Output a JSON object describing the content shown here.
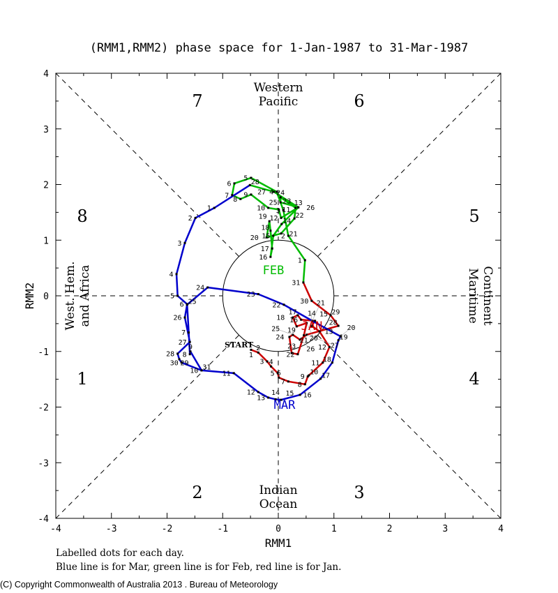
{
  "chart_data": {
    "type": "line",
    "title": "(RMM1,RMM2) phase space for  1-Jan-1987 to 31-Mar-1987",
    "xlabel": "RMM1",
    "ylabel": "RMM2",
    "xlim": [
      -4,
      4
    ],
    "ylim": [
      -4,
      4
    ],
    "xticks": [
      "-4",
      "-3",
      "-2",
      "-1",
      "0",
      "1",
      "2",
      "3",
      "4"
    ],
    "yticks": [
      "-4",
      "-3",
      "-2",
      "-1",
      "0",
      "1",
      "2",
      "3",
      "4"
    ],
    "phases": [
      "1",
      "2",
      "3",
      "4",
      "5",
      "6",
      "7",
      "8"
    ],
    "regions": {
      "top": [
        "Western",
        "Pacific"
      ],
      "bottom": [
        "Indian",
        "Ocean"
      ],
      "left": [
        "West. Hem.",
        "and Africa"
      ],
      "right": [
        "Maritime",
        "Continent"
      ]
    },
    "start_label": "START",
    "series": [
      {
        "name": "JAN",
        "color": "#cc0000",
        "x": [
          -0.49,
          -0.36,
          -0.2,
          -0.13,
          -0.01,
          0.01,
          0.18,
          0.48,
          0.53,
          0.55,
          0.8,
          0.92,
          0.74,
          0.6,
          0.66,
          0.41,
          0.35,
          0.26,
          0.33,
          0.51,
          0.46,
          0.35,
          0.24,
          0.2,
          0.26,
          0.39,
          0.51,
          1.08,
          0.94,
          0.6,
          0.45
        ],
        "y": [
          -0.97,
          -1.02,
          -1.18,
          -1.27,
          -1.39,
          -1.47,
          -1.54,
          -1.59,
          -1.45,
          -1.43,
          -1.2,
          -0.92,
          -0.64,
          -0.54,
          -0.45,
          -0.43,
          -0.35,
          -0.39,
          -0.55,
          -0.49,
          -0.71,
          -1.05,
          -1.03,
          -0.74,
          -0.7,
          -0.79,
          -0.7,
          -0.54,
          -0.35,
          -0.09,
          0.24
        ]
      },
      {
        "name": "FEB",
        "color": "#00bb00",
        "x": [
          0.48,
          0.18,
          0.09,
          -0.03,
          -0.49,
          -0.79,
          -0.83,
          -0.68,
          -0.49,
          -0.18,
          0.01,
          0.05,
          0.36,
          0.06,
          -0.09,
          -0.14,
          -0.11,
          -0.14,
          -0.16,
          -0.21,
          0.05,
          0.29,
          0.31,
          0.04,
          0.04,
          0.36,
          -0.08,
          -0.51
        ],
        "y": [
          0.64,
          1.08,
          1.54,
          1.87,
          2.12,
          2.02,
          1.81,
          1.74,
          1.82,
          1.58,
          1.55,
          1.4,
          1.59,
          1.29,
          1.08,
          0.7,
          0.85,
          1.17,
          1.34,
          1.05,
          1.12,
          1.39,
          1.58,
          1.77,
          1.68,
          1.59,
          1.87,
          1.99
        ]
      },
      {
        "name": "MAR",
        "color": "#0000cc",
        "x": [
          -1.15,
          -1.49,
          -1.68,
          -1.83,
          -1.81,
          -1.64,
          -1.61,
          -1.59,
          -1.58,
          -1.38,
          -0.8,
          -0.36,
          -0.18,
          -0.05,
          0.05,
          0.39,
          0.76,
          0.97,
          1.08,
          1.12,
          0.61,
          0.1,
          -0.36,
          -1.27,
          -1.64,
          -1.68,
          -1.59,
          -1.81,
          -1.78,
          -1.74,
          -1.38
        ],
        "y": [
          1.58,
          1.4,
          0.95,
          0.39,
          0.0,
          -0.15,
          -0.66,
          -1.05,
          -1.0,
          -1.34,
          -1.39,
          -1.73,
          -1.83,
          -1.86,
          -1.87,
          -1.78,
          -1.49,
          -1.2,
          -0.8,
          -0.73,
          -0.45,
          -0.16,
          0.03,
          0.15,
          -0.16,
          -0.39,
          -0.83,
          -1.04,
          -1.14,
          -1.2,
          -1.34
        ]
      }
    ],
    "month_labels": {
      "JAN": "JAN",
      "FEB": "FEB",
      "MAR": "MAR"
    },
    "notes": [
      "Labelled dots for each day.",
      "Blue line is for Mar, green line is for Feb, red line is for Jan."
    ]
  },
  "copyright": "(C) Copyright Commonwealth of Australia 2013 . Bureau of Meteorology"
}
